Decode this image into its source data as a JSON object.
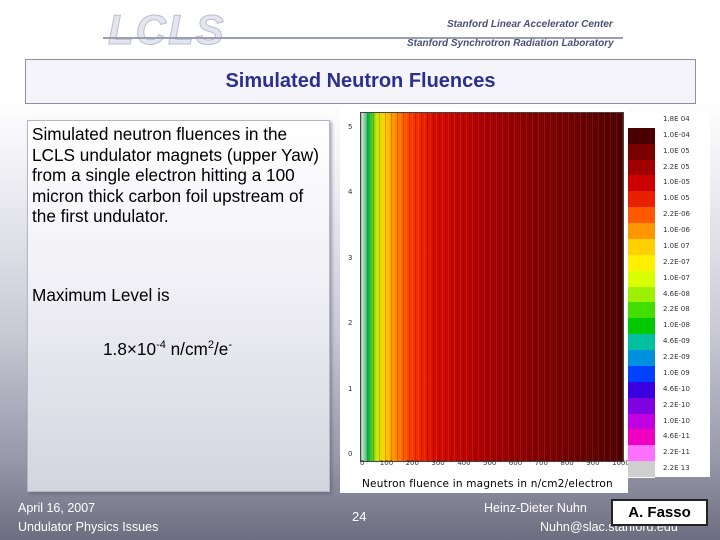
{
  "header": {
    "logo_text": "LCLS",
    "lab_line1": "Stanford Linear Accelerator Center",
    "lab_line2": "Stanford Synchrotron Radiation Laboratory"
  },
  "slide": {
    "title": "Simulated Neutron Fluences",
    "description": "Simulated neutron fluences in the LCLS undulator magnets (upper Yaw) from a single electron hitting a 100 micron thick carbon foil upstream of the first undulator.",
    "max_label": "Maximum Level is",
    "max_value_base": "1.8×10",
    "max_value_exp": "-4",
    "max_value_unit": " n/cm",
    "max_value_unit_exp": "2",
    "max_value_tail": "/e",
    "max_value_tail_exp": "-"
  },
  "plot": {
    "y_ticks": [
      "5",
      "4",
      "3",
      "2",
      "1",
      "0"
    ],
    "x_ticks": [
      "0",
      "100",
      "200",
      "300",
      "400",
      "500",
      "600",
      "700",
      "800",
      "900",
      "1000"
    ],
    "x_title": "Neutron fluence in magnets in n/cm2/electron",
    "colorbar": [
      {
        "label": "1.8E 04",
        "color": "#ffffff"
      },
      {
        "label": "1.0E-04",
        "color": "#4a0000"
      },
      {
        "label": "1.0E 05",
        "color": "#7a0000"
      },
      {
        "label": "2.2E 05",
        "color": "#a00000"
      },
      {
        "label": "1.0E-05",
        "color": "#cc0000"
      },
      {
        "label": "1.0E 05",
        "color": "#e82000"
      },
      {
        "label": "2.2E-06",
        "color": "#ff5a00"
      },
      {
        "label": "1.0E-06",
        "color": "#ff9600"
      },
      {
        "label": "1.0E 07",
        "color": "#ffd000"
      },
      {
        "label": "2.2E-07",
        "color": "#fff000"
      },
      {
        "label": "1.0E-07",
        "color": "#d8ff00"
      },
      {
        "label": "4.6E-08",
        "color": "#9cf000"
      },
      {
        "label": "2.2E 08",
        "color": "#44dd00"
      },
      {
        "label": "1.0E-08",
        "color": "#00c800"
      },
      {
        "label": "4.6E-09",
        "color": "#00c0a0"
      },
      {
        "label": "2.2E-09",
        "color": "#0090e0"
      },
      {
        "label": "1.0E 09",
        "color": "#0040ff"
      },
      {
        "label": "4.6E-10",
        "color": "#3a00e0"
      },
      {
        "label": "2.2E-10",
        "color": "#8000e0"
      },
      {
        "label": "1.0E-10",
        "color": "#c000e0"
      },
      {
        "label": "4.6E-11",
        "color": "#f000c0"
      },
      {
        "label": "2.2E-11",
        "color": "#ff70ff"
      },
      {
        "label": "2.2E 13",
        "color": "#cfcfcf"
      }
    ]
  },
  "footer": {
    "date": "April 16, 2007",
    "venue": "Undulator Physics Issues",
    "page_number": "24",
    "author": "Heinz-Dieter Nuhn",
    "email": "Nuhn@slac.stanford.edu",
    "badge": "A. Fasso"
  }
}
